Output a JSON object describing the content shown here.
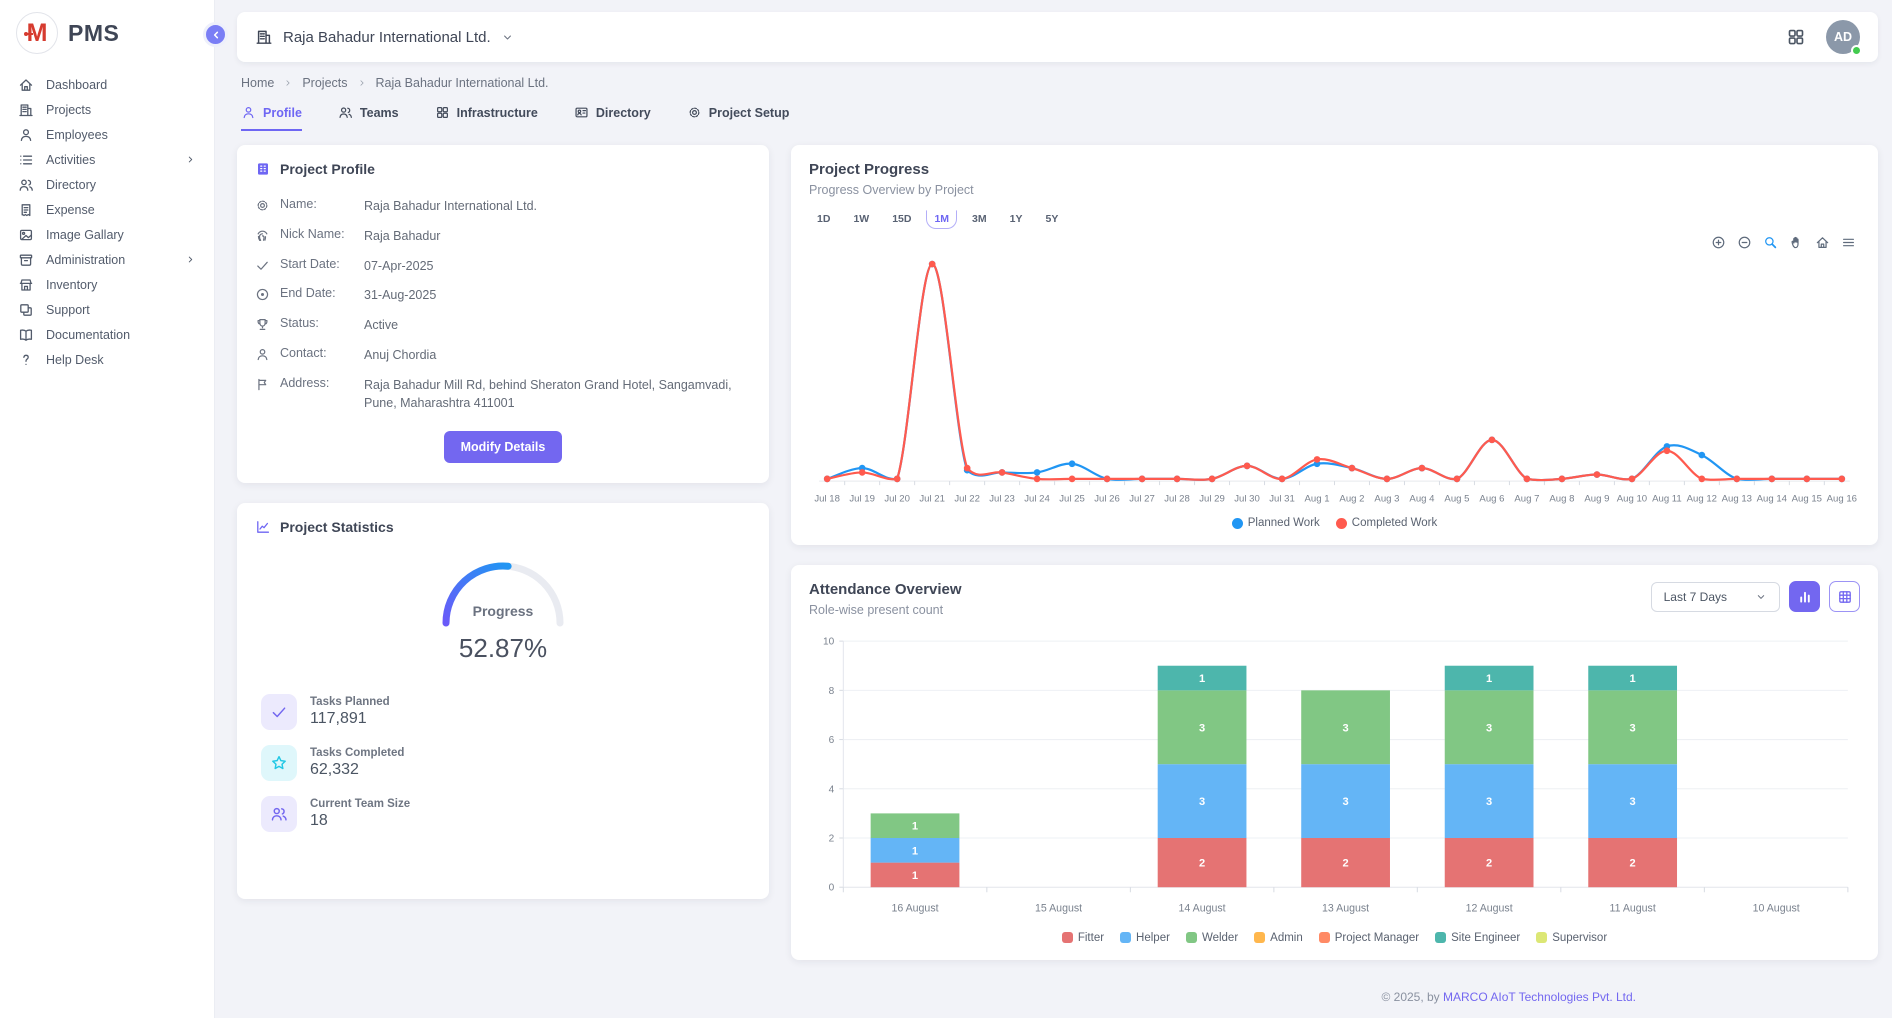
{
  "app": {
    "logo_text": "PMS",
    "logo_letter": "M"
  },
  "header": {
    "company_name": "Raja Bahadur International Ltd.",
    "avatar_initials": "AD"
  },
  "breadcrumb": [
    "Home",
    "Projects",
    "Raja Bahadur International Ltd."
  ],
  "tabs": [
    {
      "label": "Profile",
      "icon": "user",
      "active": true
    },
    {
      "label": "Teams",
      "icon": "users",
      "active": false
    },
    {
      "label": "Infrastructure",
      "icon": "grid",
      "active": false
    },
    {
      "label": "Directory",
      "icon": "card",
      "active": false
    },
    {
      "label": "Project Setup",
      "icon": "gear",
      "active": false
    }
  ],
  "sidebar": {
    "items": [
      {
        "label": "Dashboard",
        "icon": "home",
        "expandable": false
      },
      {
        "label": "Projects",
        "icon": "building",
        "expandable": false
      },
      {
        "label": "Employees",
        "icon": "user",
        "expandable": false
      },
      {
        "label": "Activities",
        "icon": "list",
        "expandable": true
      },
      {
        "label": "Directory",
        "icon": "users",
        "expandable": false
      },
      {
        "label": "Expense",
        "icon": "receipt",
        "expandable": false
      },
      {
        "label": "Image Gallary",
        "icon": "image",
        "expandable": false
      },
      {
        "label": "Administration",
        "icon": "archive",
        "expandable": true
      },
      {
        "label": "Inventory",
        "icon": "store",
        "expandable": false
      },
      {
        "label": "Support",
        "icon": "copy",
        "expandable": false
      },
      {
        "label": "Documentation",
        "icon": "book",
        "expandable": false
      },
      {
        "label": "Help Desk",
        "icon": "question",
        "expandable": false
      }
    ]
  },
  "profile_card": {
    "title": "Project Profile",
    "fields": [
      {
        "icon": "gear",
        "label": "Name:",
        "value": "Raja Bahadur International Ltd."
      },
      {
        "icon": "fingerprint",
        "label": "Nick Name:",
        "value": "Raja Bahadur"
      },
      {
        "icon": "check",
        "label": "Start Date:",
        "value": "07-Apr-2025"
      },
      {
        "icon": "circledot",
        "label": "End Date:",
        "value": "31-Aug-2025"
      },
      {
        "icon": "trophy",
        "label": "Status:",
        "value": "Active"
      },
      {
        "icon": "user",
        "label": "Contact:",
        "value": "Anuj Chordia"
      },
      {
        "icon": "flag",
        "label": "Address:",
        "value": "Raja Bahadur Mill Rd, behind Sheraton Grand Hotel, Sangamvadi, Pune, Maharashtra 411001"
      }
    ],
    "button_label": "Modify Details"
  },
  "stats_card": {
    "title": "Project Statistics",
    "gauge": {
      "label": "Progress",
      "value_text": "52.87%",
      "percent": 52.87,
      "color_start": "#6a5af9",
      "color_end": "#2196f3"
    },
    "stats": [
      {
        "icon": "check",
        "style": "purple",
        "label": "Tasks Planned",
        "value": "117,891"
      },
      {
        "icon": "star",
        "style": "cyan",
        "label": "Tasks Completed",
        "value": "62,332"
      },
      {
        "icon": "users",
        "style": "purple",
        "label": "Current Team Size",
        "value": "18"
      }
    ]
  },
  "progress_card": {
    "title": "Project Progress",
    "subtitle": "Progress Overview by Project",
    "ranges": [
      "1D",
      "1W",
      "15D",
      "1M",
      "3M",
      "1Y",
      "5Y"
    ],
    "active_range": "1M",
    "chart_data": {
      "type": "line",
      "x": [
        "Jul 18",
        "Jul 19",
        "Jul 20",
        "Jul 21",
        "Jul 22",
        "Jul 23",
        "Jul 24",
        "Jul 25",
        "Jul 26",
        "Jul 27",
        "Jul 28",
        "Jul 29",
        "Jul 30",
        "Jul 31",
        "Aug 1",
        "Aug 2",
        "Aug 3",
        "Aug 4",
        "Aug 5",
        "Aug 6",
        "Aug 7",
        "Aug 8",
        "Aug 9",
        "Aug 10",
        "Aug 11",
        "Aug 12",
        "Aug 13",
        "Aug 14",
        "Aug 15",
        "Aug 16"
      ],
      "ylim": [
        0,
        105
      ],
      "grid": false,
      "legend_position": "bottom",
      "series": [
        {
          "name": "Planned Work",
          "color": "#2196f3",
          "values": [
            1,
            6,
            1,
            100,
            5,
            4,
            4,
            8,
            1,
            1,
            1,
            1,
            7,
            1,
            8,
            6,
            1,
            6,
            1,
            19,
            1,
            1,
            3,
            1,
            16,
            12,
            1,
            1,
            1,
            1
          ]
        },
        {
          "name": "Completed Work",
          "color": "#ff5a4e",
          "values": [
            1,
            4,
            1,
            100,
            6,
            4,
            1,
            1,
            1,
            1,
            1,
            1,
            7,
            1,
            10,
            6,
            1,
            6,
            1,
            19,
            1,
            1,
            3,
            1,
            14,
            1,
            1,
            1,
            1,
            1
          ]
        }
      ]
    }
  },
  "attendance_card": {
    "title": "Attendance Overview",
    "subtitle": "Role-wise present count",
    "range_select": "Last 7 Days",
    "chart_data": {
      "type": "bar",
      "stacked": true,
      "categories": [
        "16 August",
        "15 August",
        "14 August",
        "13 August",
        "12 August",
        "11 August",
        "10 August"
      ],
      "ylim": [
        0,
        10
      ],
      "yticks": [
        0,
        2,
        4,
        6,
        8,
        10
      ],
      "grid": true,
      "legend_position": "bottom",
      "series": [
        {
          "name": "Fitter",
          "color": "#e57373",
          "values": [
            1,
            0,
            2,
            2,
            2,
            2,
            0
          ]
        },
        {
          "name": "Helper",
          "color": "#64b5f6",
          "values": [
            1,
            0,
            3,
            3,
            3,
            3,
            0
          ]
        },
        {
          "name": "Welder",
          "color": "#81c784",
          "values": [
            1,
            0,
            3,
            3,
            3,
            3,
            0
          ]
        },
        {
          "name": "Admin",
          "color": "#ffb74d",
          "values": [
            0,
            0,
            0,
            0,
            0,
            0,
            0
          ]
        },
        {
          "name": "Project Manager",
          "color": "#ff8a65",
          "values": [
            0,
            0,
            0,
            0,
            0,
            0,
            0
          ]
        },
        {
          "name": "Site Engineer",
          "color": "#4db6ac",
          "values": [
            0,
            0,
            1,
            0,
            1,
            1,
            0
          ]
        },
        {
          "name": "Supervisor",
          "color": "#dce775",
          "values": [
            0,
            0,
            0,
            0,
            0,
            0,
            0
          ]
        }
      ]
    }
  },
  "footer": {
    "prefix": "© 2025, by ",
    "company": "MARCO AIoT Technologies Pvt. Ltd."
  }
}
